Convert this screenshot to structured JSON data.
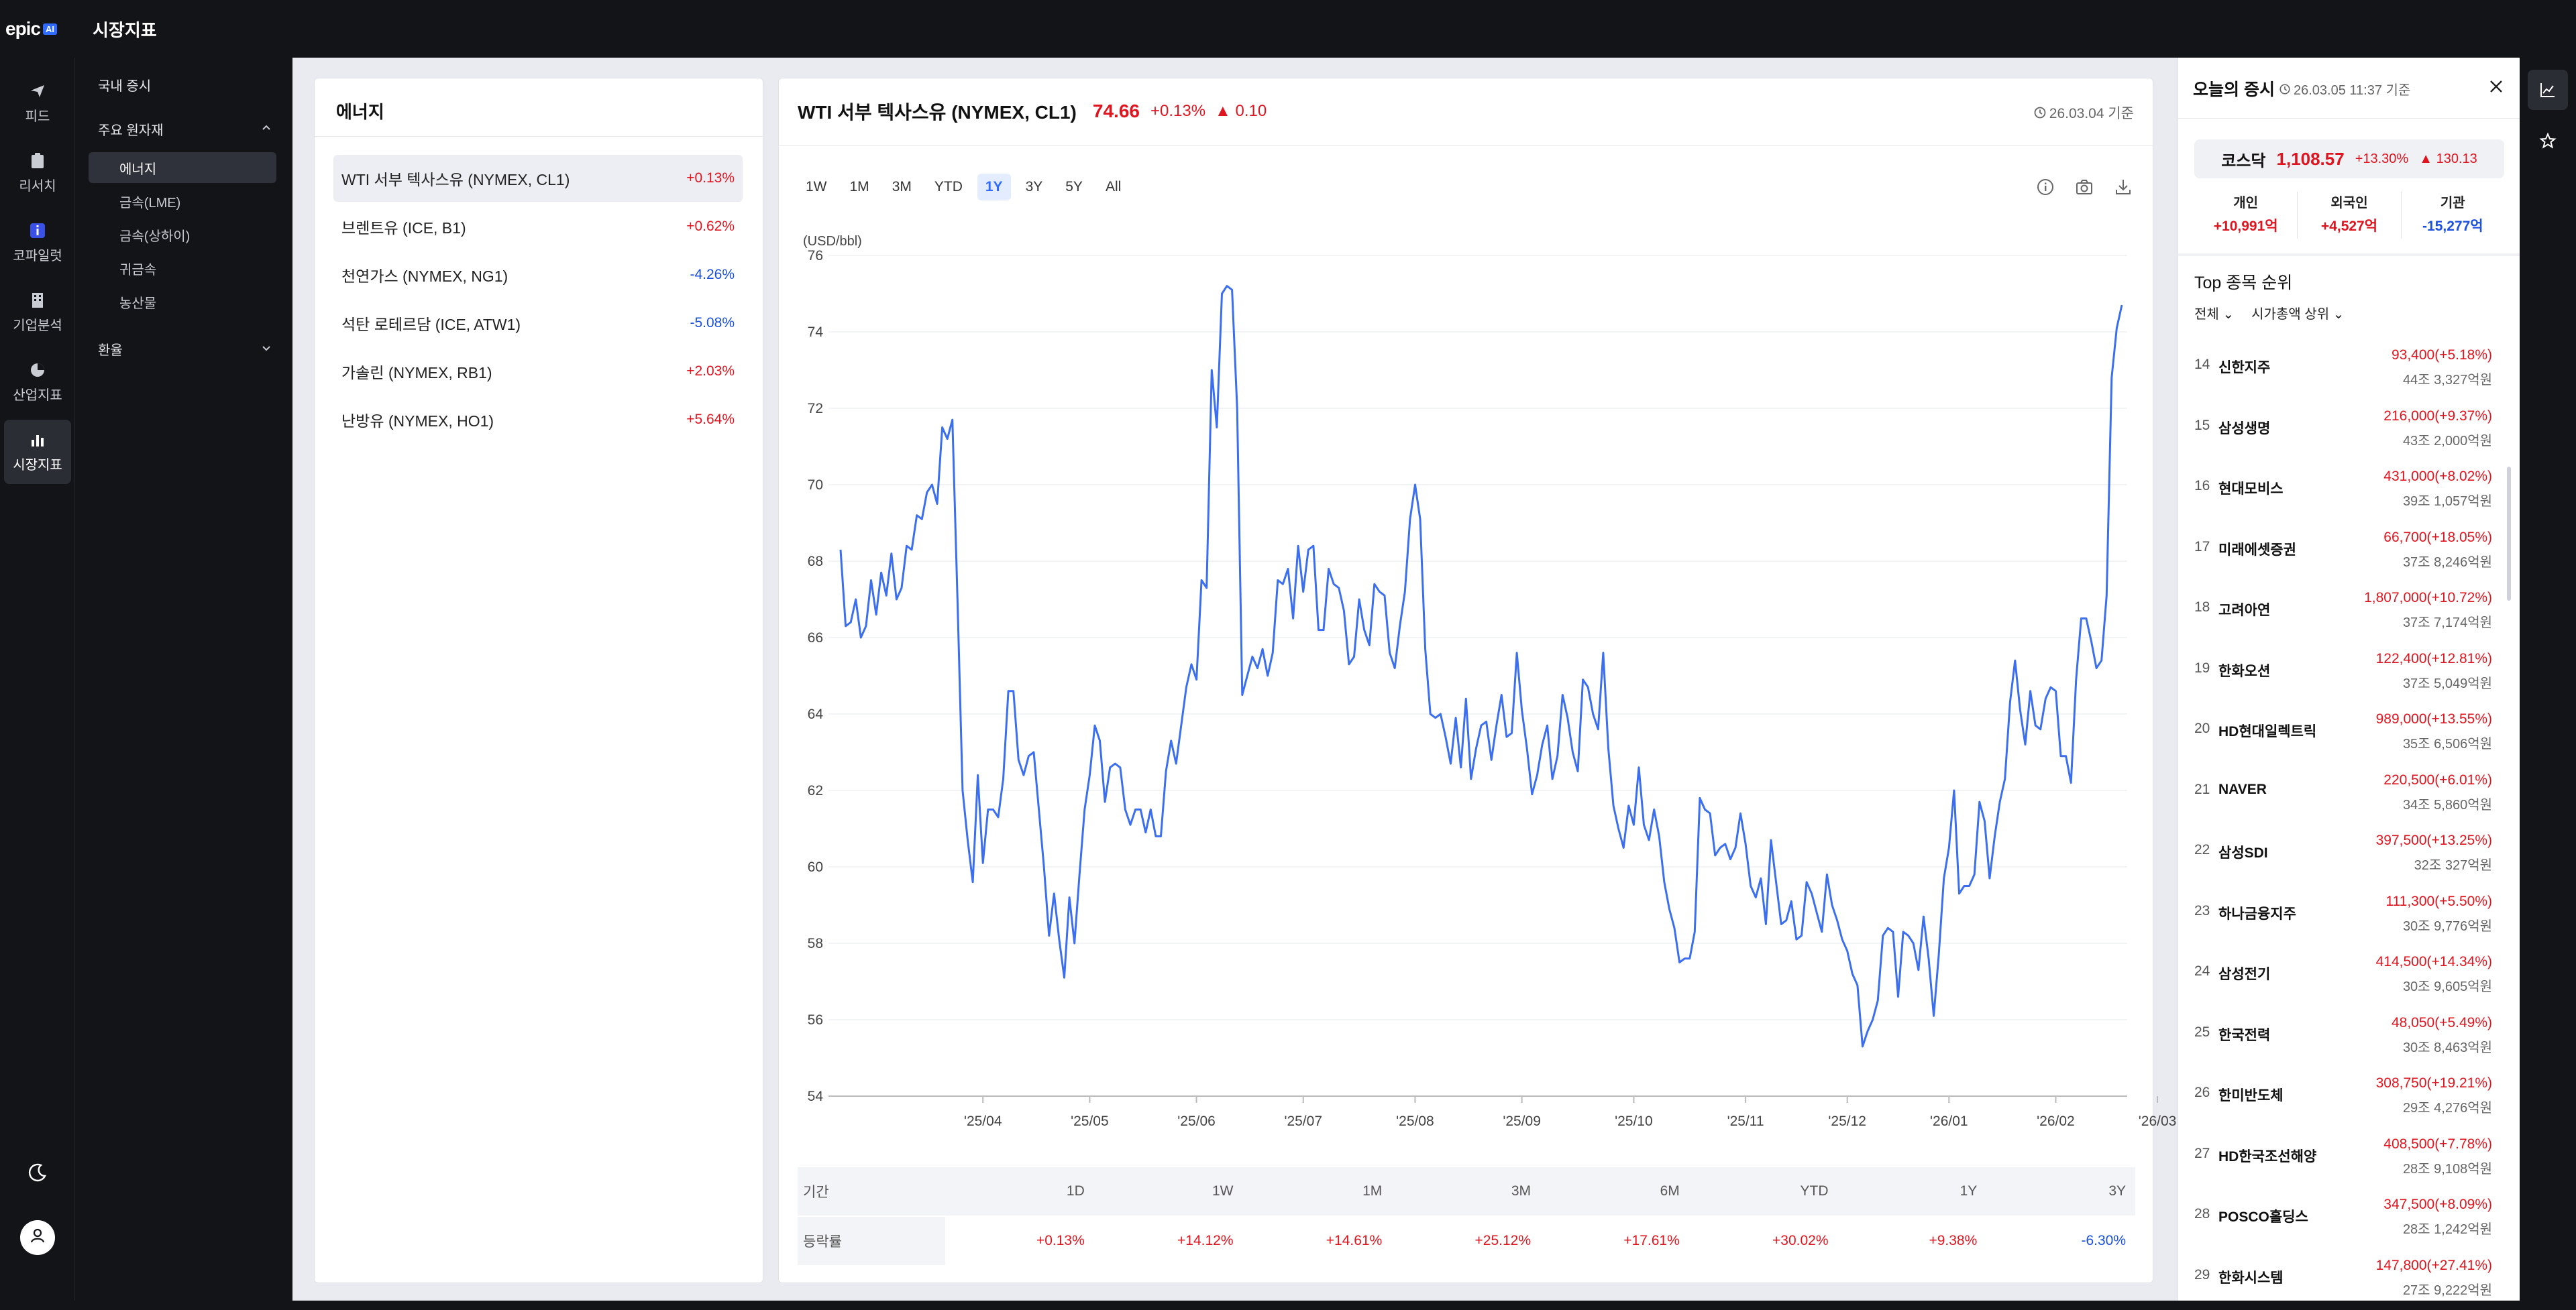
{
  "app": {
    "logo_text": "epic",
    "logo_badge": "AI",
    "title": "시장지표"
  },
  "rail": [
    {
      "label": "피드",
      "icon": "send-icon"
    },
    {
      "label": "리서치",
      "icon": "clipboard-icon"
    },
    {
      "label": "코파일럿",
      "icon": "copilot-icon"
    },
    {
      "label": "기업분석",
      "icon": "building-icon"
    },
    {
      "label": "산업지표",
      "icon": "pie-chart-icon"
    },
    {
      "label": "시장지표",
      "icon": "bar-chart-icon",
      "active": true
    }
  ],
  "subnav": {
    "domestic": "국내 증시",
    "commodities": "주요 원자재",
    "children": [
      "에너지",
      "금속(LME)",
      "금속(상하이)",
      "귀금속",
      "농산물"
    ],
    "fx": "환율"
  },
  "list": {
    "title": "에너지",
    "items": [
      {
        "name": "WTI 서부 텍사스유 (NYMEX, CL1)",
        "change": "+0.13%",
        "dir": "up"
      },
      {
        "name": "브렌트유 (ICE, B1)",
        "change": "+0.62%",
        "dir": "up"
      },
      {
        "name": "천연가스 (NYMEX, NG1)",
        "change": "-4.26%",
        "dir": "down"
      },
      {
        "name": "석탄 로테르담 (ICE, ATW1)",
        "change": "-5.08%",
        "dir": "down"
      },
      {
        "name": "가솔린 (NYMEX, RB1)",
        "change": "+2.03%",
        "dir": "up"
      },
      {
        "name": "난방유 (NYMEX, HO1)",
        "change": "+5.64%",
        "dir": "up"
      }
    ]
  },
  "chart_header": {
    "name": "WTI 서부 텍사스유 (NYMEX, CL1)",
    "price": "74.66",
    "pct": "+0.13%",
    "diff": "▲ 0.10",
    "date": "26.03.04 기준"
  },
  "ranges": [
    "1W",
    "1M",
    "3M",
    "YTD",
    "1Y",
    "3Y",
    "5Y",
    "All"
  ],
  "active_range": "1Y",
  "chart_data": {
    "type": "line",
    "ylabel": "(USD/bbl)",
    "ylim": [
      54,
      76
    ],
    "yticks": [
      54,
      56,
      58,
      60,
      62,
      64,
      66,
      68,
      70,
      72,
      74,
      76
    ],
    "xticks": [
      {
        "label": "'25/04",
        "i": 28
      },
      {
        "label": "'25/05",
        "i": 49
      },
      {
        "label": "'25/06",
        "i": 70
      },
      {
        "label": "'25/07",
        "i": 91
      },
      {
        "label": "'25/08",
        "i": 113
      },
      {
        "label": "'25/09",
        "i": 134
      },
      {
        "label": "'25/10",
        "i": 156
      },
      {
        "label": "'25/11",
        "i": 178
      },
      {
        "label": "'25/12",
        "i": 198
      },
      {
        "label": "'26/01",
        "i": 218
      },
      {
        "label": "'26/02",
        "i": 239
      },
      {
        "label": "'26/03",
        "i": 259
      }
    ],
    "series": [
      {
        "color": "#3b6ff0",
        "values": [
          68.3,
          66.3,
          66.4,
          67.0,
          66.0,
          66.3,
          67.5,
          66.6,
          67.7,
          67.1,
          68.2,
          67.0,
          67.3,
          68.4,
          68.3,
          69.2,
          69.1,
          69.8,
          70.0,
          69.5,
          71.5,
          71.2,
          71.7,
          67.0,
          62.0,
          60.7,
          59.6,
          62.4,
          60.1,
          61.5,
          61.5,
          61.3,
          62.3,
          64.6,
          64.6,
          62.8,
          62.4,
          62.9,
          63.0,
          61.5,
          60.0,
          58.2,
          59.3,
          58.1,
          57.1,
          59.2,
          58.0,
          59.8,
          61.5,
          62.4,
          63.7,
          63.3,
          61.7,
          62.6,
          62.7,
          62.6,
          61.5,
          61.1,
          61.5,
          61.5,
          60.9,
          61.5,
          60.8,
          60.8,
          62.5,
          63.3,
          62.7,
          63.7,
          64.7,
          65.3,
          64.9,
          67.5,
          67.3,
          73.0,
          71.5,
          75.0,
          75.2,
          75.1,
          72.0,
          64.5,
          65.0,
          65.5,
          65.2,
          65.7,
          65.0,
          65.6,
          67.5,
          67.4,
          67.8,
          66.5,
          68.4,
          67.2,
          68.3,
          68.4,
          66.2,
          66.2,
          67.8,
          67.4,
          67.3,
          66.7,
          65.3,
          65.5,
          67.0,
          66.2,
          65.8,
          67.4,
          67.2,
          67.1,
          65.6,
          65.2,
          66.3,
          67.2,
          69.1,
          70.0,
          69.1,
          65.7,
          64.0,
          63.9,
          64.0,
          63.4,
          62.7,
          63.9,
          62.6,
          64.4,
          62.3,
          63.1,
          63.7,
          63.8,
          62.8,
          63.7,
          64.5,
          63.4,
          63.5,
          65.6,
          64.1,
          63.1,
          61.9,
          62.4,
          63.2,
          63.7,
          62.3,
          62.9,
          64.5,
          63.9,
          63.0,
          62.5,
          64.9,
          64.7,
          64.0,
          63.6,
          65.6,
          63.1,
          61.6,
          61.0,
          60.5,
          61.6,
          61.1,
          62.6,
          61.1,
          60.7,
          61.5,
          60.8,
          59.6,
          58.9,
          58.4,
          57.5,
          57.6,
          57.6,
          58.3,
          61.8,
          61.5,
          61.4,
          60.3,
          60.5,
          60.6,
          60.2,
          60.5,
          61.4,
          60.6,
          59.5,
          59.2,
          59.7,
          58.5,
          60.7,
          59.6,
          58.5,
          58.6,
          59.1,
          58.1,
          58.2,
          59.6,
          59.3,
          58.8,
          58.3,
          59.8,
          59.0,
          58.6,
          58.1,
          57.8,
          57.2,
          56.9,
          55.3,
          55.7,
          56.0,
          56.5,
          58.2,
          58.4,
          58.3,
          56.6,
          58.3,
          58.2,
          58.0,
          57.3,
          58.7,
          57.6,
          56.1,
          57.7,
          59.7,
          60.5,
          62.0,
          59.3,
          59.5,
          59.5,
          59.8,
          61.7,
          61.2,
          59.7,
          60.8,
          61.7,
          62.3,
          64.3,
          65.4,
          64.1,
          63.2,
          64.6,
          63.7,
          63.6,
          64.4,
          64.7,
          64.6,
          62.9,
          62.9,
          62.2,
          64.9,
          66.5,
          66.5,
          65.9,
          65.2,
          65.4,
          67.1,
          72.8,
          74.1,
          74.7
        ]
      }
    ]
  },
  "returns": {
    "head_label": "기간",
    "body_label": "등락률",
    "periods": [
      "1D",
      "1W",
      "1M",
      "3M",
      "6M",
      "YTD",
      "1Y",
      "3Y"
    ],
    "values": [
      {
        "v": "+0.13%",
        "dir": "up"
      },
      {
        "v": "+14.12%",
        "dir": "up"
      },
      {
        "v": "+14.61%",
        "dir": "up"
      },
      {
        "v": "+25.12%",
        "dir": "up"
      },
      {
        "v": "+17.61%",
        "dir": "up"
      },
      {
        "v": "+30.02%",
        "dir": "up"
      },
      {
        "v": "+9.38%",
        "dir": "up"
      },
      {
        "v": "-6.30%",
        "dir": "down"
      }
    ]
  },
  "market": {
    "title": "오늘의 증시",
    "time": "26.03.05 11:37 기준",
    "index_name": "코스닥",
    "index_price": "1,108.57",
    "index_pct": "+13.30%",
    "index_diff": "▲ 130.13",
    "investors": [
      {
        "label": "개인",
        "value": "+10,991억",
        "dir": "up"
      },
      {
        "label": "외국인",
        "value": "+4,527억",
        "dir": "up"
      },
      {
        "label": "기관",
        "value": "-15,277억",
        "dir": "down"
      }
    ],
    "top_title": "Top 종목 순위",
    "filter_all": "전체",
    "filter_sort": "시가총액 상위",
    "stocks": [
      {
        "rank": "14",
        "name": "신한지주",
        "price": "93,400(+5.18%)",
        "cap": "44조 3,327억원"
      },
      {
        "rank": "15",
        "name": "삼성생명",
        "price": "216,000(+9.37%)",
        "cap": "43조 2,000억원"
      },
      {
        "rank": "16",
        "name": "현대모비스",
        "price": "431,000(+8.02%)",
        "cap": "39조 1,057억원"
      },
      {
        "rank": "17",
        "name": "미래에셋증권",
        "price": "66,700(+18.05%)",
        "cap": "37조 8,246억원"
      },
      {
        "rank": "18",
        "name": "고려아연",
        "price": "1,807,000(+10.72%)",
        "cap": "37조 7,174억원"
      },
      {
        "rank": "19",
        "name": "한화오션",
        "price": "122,400(+12.81%)",
        "cap": "37조 5,049억원"
      },
      {
        "rank": "20",
        "name": "HD현대일렉트릭",
        "price": "989,000(+13.55%)",
        "cap": "35조 6,506억원"
      },
      {
        "rank": "21",
        "name": "NAVER",
        "price": "220,500(+6.01%)",
        "cap": "34조 5,860억원"
      },
      {
        "rank": "22",
        "name": "삼성SDI",
        "price": "397,500(+13.25%)",
        "cap": "32조 327억원"
      },
      {
        "rank": "23",
        "name": "하나금융지주",
        "price": "111,300(+5.50%)",
        "cap": "30조 9,776억원"
      },
      {
        "rank": "24",
        "name": "삼성전기",
        "price": "414,500(+14.34%)",
        "cap": "30조 9,605억원"
      },
      {
        "rank": "25",
        "name": "한국전력",
        "price": "48,050(+5.49%)",
        "cap": "30조 8,463억원"
      },
      {
        "rank": "26",
        "name": "한미반도체",
        "price": "308,750(+19.21%)",
        "cap": "29조 4,276억원"
      },
      {
        "rank": "27",
        "name": "HD한국조선해양",
        "price": "408,500(+7.78%)",
        "cap": "28조 9,108억원"
      },
      {
        "rank": "28",
        "name": "POSCO홀딩스",
        "price": "347,500(+8.09%)",
        "cap": "28조 1,242억원"
      },
      {
        "rank": "29",
        "name": "한화시스템",
        "price": "147,800(+27.41%)",
        "cap": "27조 9,222억원"
      }
    ]
  },
  "colors": {
    "up": "#e0141e",
    "down": "#1a4fe0",
    "line": "#3b6ff0",
    "accent": "#2f6bff"
  }
}
